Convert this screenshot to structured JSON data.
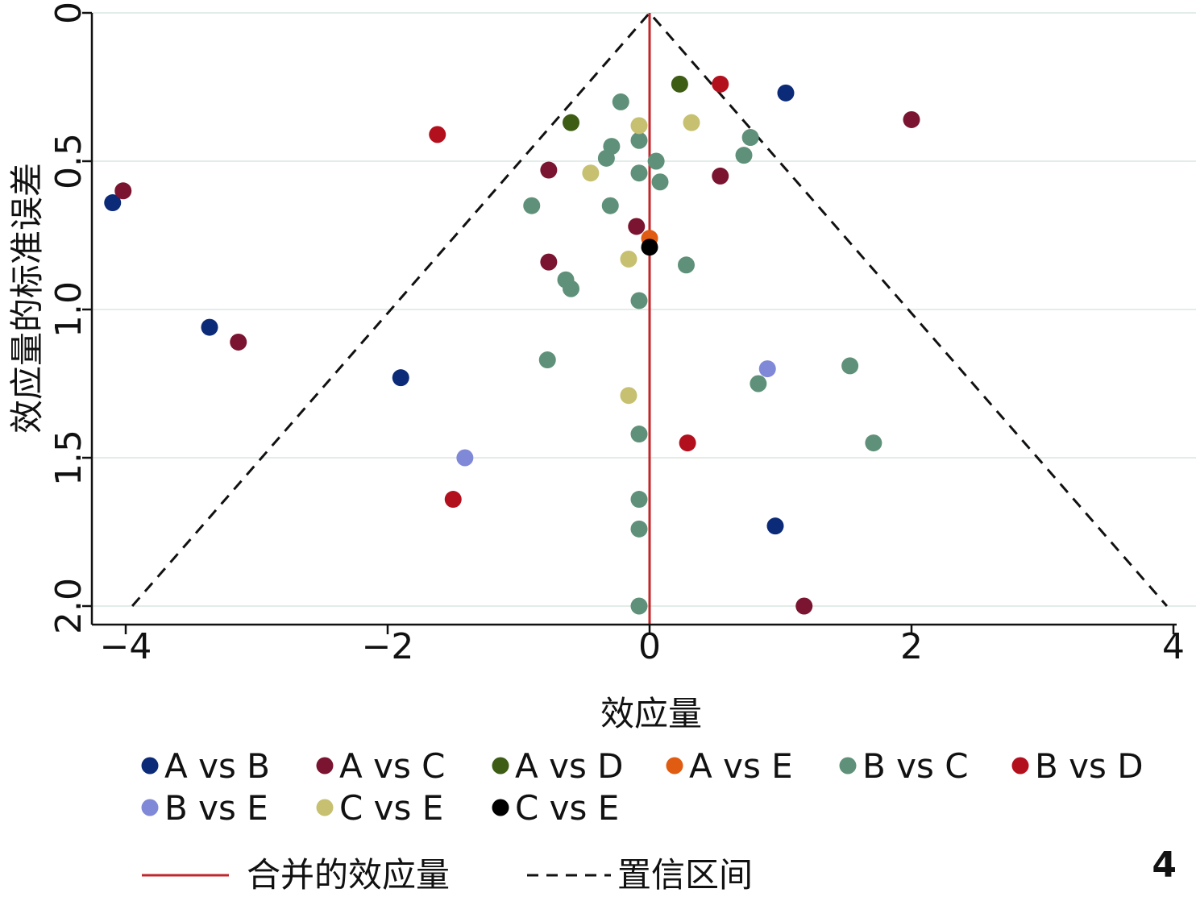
{
  "chart_data": {
    "type": "scatter",
    "subtype": "funnel",
    "title": "",
    "xlabel": "效应量",
    "ylabel": "效应量的标准误差",
    "xlim": [
      -4.1,
      4.0
    ],
    "ylim": [
      2.05,
      0
    ],
    "y_axis_reversed": true,
    "x_ticks": [
      -4,
      -2,
      0,
      2,
      4
    ],
    "x_tick_labels": [
      "−4",
      "−2",
      "0",
      "2",
      "4"
    ],
    "y_ticks": [
      0,
      0.5,
      1.0,
      1.5,
      2.0
    ],
    "y_tick_labels": [
      "0",
      "0.5",
      "1.0",
      "1.5",
      "2.0"
    ],
    "grid": "horizontal",
    "panel_label": "4",
    "pooled_effect": 0,
    "pooled_line_label": "合并的效应量",
    "pooled_line_color": "#c0272d",
    "ci_label": "置信区间",
    "ci_line_color": "#111111",
    "ci_bounds": [
      {
        "x": -3.95,
        "y": 2.0
      },
      {
        "x": 0,
        "y": 0
      },
      {
        "x": 3.95,
        "y": 2.0
      }
    ],
    "legend_position": "bottom",
    "series": [
      {
        "name": "A vs B",
        "color": "#0b2a78",
        "points": [
          {
            "x": -4.1,
            "y": 0.64
          },
          {
            "x": 1.04,
            "y": 0.27
          },
          {
            "x": -3.36,
            "y": 1.06
          },
          {
            "x": -1.9,
            "y": 1.23
          },
          {
            "x": 0.96,
            "y": 1.73
          }
        ]
      },
      {
        "name": "A vs C",
        "color": "#7a1430",
        "points": [
          {
            "x": -4.02,
            "y": 0.6
          },
          {
            "x": 2.0,
            "y": 0.36
          },
          {
            "x": -0.77,
            "y": 0.53
          },
          {
            "x": 0.54,
            "y": 0.55
          },
          {
            "x": -0.1,
            "y": 0.72
          },
          {
            "x": -0.77,
            "y": 0.84
          },
          {
            "x": -3.14,
            "y": 1.11
          },
          {
            "x": 1.18,
            "y": 2.0
          }
        ]
      },
      {
        "name": "A vs D",
        "color": "#3d5c14",
        "points": [
          {
            "x": 0.23,
            "y": 0.24
          },
          {
            "x": -0.6,
            "y": 0.37
          }
        ]
      },
      {
        "name": "A vs E",
        "color": "#e05c12",
        "points": [
          {
            "x": 0.0,
            "y": 0.76
          }
        ]
      },
      {
        "name": "B vs C",
        "color": "#5f917a",
        "points": [
          {
            "x": -0.22,
            "y": 0.3
          },
          {
            "x": 0.77,
            "y": 0.42
          },
          {
            "x": -0.08,
            "y": 0.43
          },
          {
            "x": -0.29,
            "y": 0.45
          },
          {
            "x": 0.72,
            "y": 0.48
          },
          {
            "x": -0.33,
            "y": 0.49
          },
          {
            "x": 0.05,
            "y": 0.5
          },
          {
            "x": -0.08,
            "y": 0.54
          },
          {
            "x": 0.08,
            "y": 0.57
          },
          {
            "x": -0.9,
            "y": 0.65
          },
          {
            "x": -0.3,
            "y": 0.65
          },
          {
            "x": 0.28,
            "y": 0.85
          },
          {
            "x": -0.64,
            "y": 0.9
          },
          {
            "x": -0.6,
            "y": 0.93
          },
          {
            "x": -0.08,
            "y": 0.97
          },
          {
            "x": -0.78,
            "y": 1.17
          },
          {
            "x": 1.53,
            "y": 1.19
          },
          {
            "x": 0.83,
            "y": 1.25
          },
          {
            "x": -0.08,
            "y": 1.42
          },
          {
            "x": 1.71,
            "y": 1.45
          },
          {
            "x": -0.08,
            "y": 1.64
          },
          {
            "x": -0.08,
            "y": 1.74
          },
          {
            "x": -0.08,
            "y": 2.0
          }
        ]
      },
      {
        "name": "B vs D",
        "color": "#b3101e",
        "points": [
          {
            "x": 0.54,
            "y": 0.24
          },
          {
            "x": -1.62,
            "y": 0.41
          },
          {
            "x": 0.29,
            "y": 1.45
          },
          {
            "x": -1.5,
            "y": 1.64
          }
        ]
      },
      {
        "name": "B vs E",
        "color": "#8088d8",
        "points": [
          {
            "x": 0.9,
            "y": 1.2
          },
          {
            "x": -1.41,
            "y": 1.5
          }
        ]
      },
      {
        "name": "C vs E",
        "color": "#c6c070",
        "points": [
          {
            "x": -0.08,
            "y": 0.38
          },
          {
            "x": 0.32,
            "y": 0.37
          },
          {
            "x": -0.45,
            "y": 0.54
          },
          {
            "x": -0.16,
            "y": 0.83
          },
          {
            "x": -0.16,
            "y": 1.29
          }
        ]
      },
      {
        "name": "C vs E",
        "color": "#000000",
        "points": [
          {
            "x": 0.0,
            "y": 0.79
          }
        ]
      }
    ]
  }
}
